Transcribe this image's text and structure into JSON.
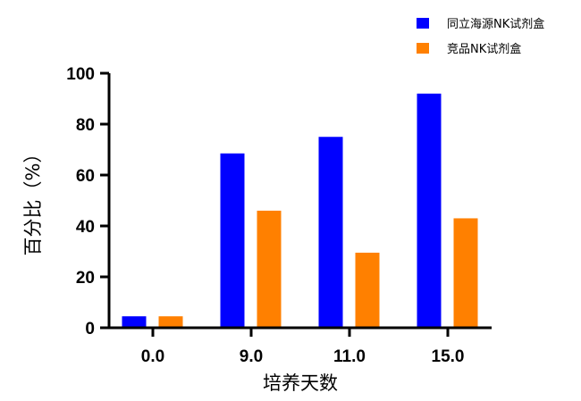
{
  "chart_data": {
    "type": "bar",
    "categories": [
      "0.0",
      "9.0",
      "11.0",
      "15.0"
    ],
    "series": [
      {
        "name": "同立海源NK试剂盒",
        "color": "#0000ff",
        "values": [
          4.5,
          68.5,
          75,
          92
        ]
      },
      {
        "name": "竞品NK试剂盒",
        "color": "#ff8000",
        "values": [
          4.5,
          46,
          29.5,
          43
        ]
      }
    ],
    "title": "",
    "xlabel": "培养天数",
    "ylabel": "百分比（%）",
    "ylim": [
      0,
      100
    ],
    "yticks": [
      0,
      20,
      40,
      60,
      80,
      100
    ],
    "grid": false,
    "legend": "top-right"
  }
}
